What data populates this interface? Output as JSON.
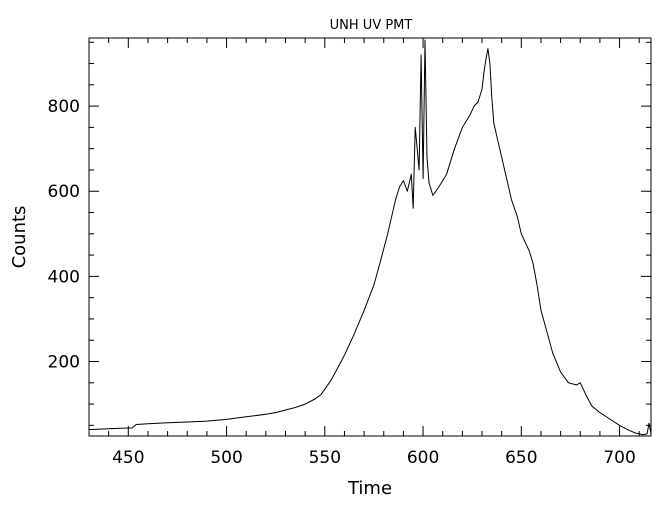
{
  "chart_data": {
    "type": "line",
    "title": "UNH UV PMT",
    "xlabel": "Time",
    "ylabel": "Counts",
    "xlim": [
      430,
      716
    ],
    "ylim": [
      25,
      960
    ],
    "grid": false,
    "x_major_ticks": [
      450,
      500,
      550,
      600,
      650,
      700
    ],
    "x_minor_step": 10,
    "y_major_ticks": [
      200,
      400,
      600,
      800
    ],
    "y_minor_step": 50,
    "series": [
      {
        "values_description_free": true,
        "x": [
          430,
          440,
          452,
          454,
          460,
          470,
          480,
          490,
          500,
          510,
          520,
          525,
          530,
          535,
          540,
          545,
          548,
          550,
          553,
          556,
          560,
          565,
          570,
          575,
          578,
          582,
          586,
          588,
          590,
          592,
          594,
          595,
          596,
          597,
          598,
          599,
          600,
          601,
          602,
          603,
          605,
          608,
          612,
          616,
          620,
          624,
          626,
          628,
          630,
          631,
          632,
          633,
          634,
          635,
          636,
          638,
          640,
          643,
          645,
          648,
          650,
          652,
          654,
          656,
          658,
          660,
          663,
          666,
          670,
          674,
          678,
          680,
          683,
          686,
          690,
          695,
          700,
          704,
          708,
          710,
          712,
          714,
          715,
          716
        ],
        "y": [
          40,
          42,
          44,
          52,
          54,
          56,
          58,
          60,
          64,
          70,
          76,
          80,
          86,
          92,
          100,
          112,
          122,
          135,
          155,
          180,
          215,
          265,
          320,
          380,
          430,
          500,
          580,
          610,
          625,
          600,
          640,
          560,
          750,
          700,
          650,
          920,
          630,
          955,
          680,
          620,
          590,
          610,
          640,
          700,
          750,
          780,
          800,
          810,
          840,
          880,
          910,
          935,
          900,
          820,
          760,
          720,
          680,
          620,
          580,
          540,
          500,
          480,
          460,
          430,
          380,
          320,
          270,
          220,
          175,
          150,
          145,
          150,
          120,
          95,
          80,
          65,
          50,
          40,
          32,
          30,
          28,
          30,
          55,
          30
        ]
      }
    ]
  }
}
